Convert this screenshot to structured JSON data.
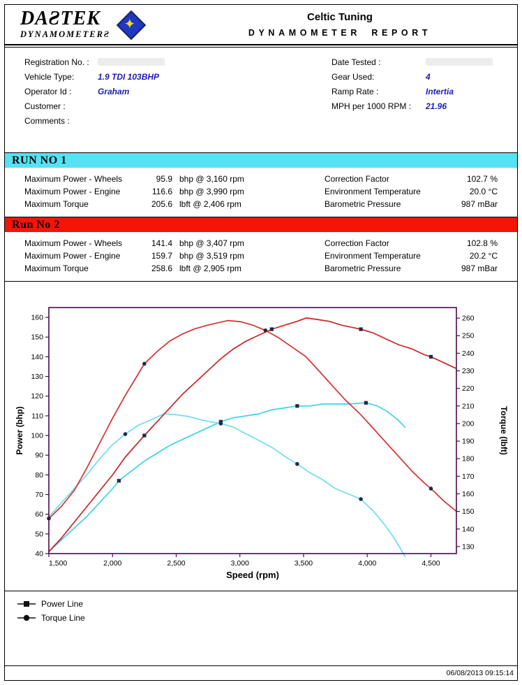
{
  "theme": {
    "value_text_color": "#1c1cb4",
    "run1_accent": "#57e2f4",
    "run2_accent": "#f41408",
    "chart_axis_color": "#4a0a4a"
  },
  "header": {
    "logo_line1": "DAƧTEK",
    "logo_line2": "DYNAMOMETERƧ",
    "logo_icon": "dastek-diamond-logo",
    "company": "Celtic Tuning",
    "report_title": "DYNAMOMETER REPORT"
  },
  "info": {
    "left": [
      {
        "label": "Registration No. :",
        "value": ""
      },
      {
        "label": "Vehicle Type:",
        "value": "1.9 TDI 103BHP"
      },
      {
        "label": "Operator Id :",
        "value": "Graham"
      },
      {
        "label": "Customer :",
        "value": ""
      },
      {
        "label": "Comments :",
        "value": ""
      }
    ],
    "right": [
      {
        "label": "Date Tested :",
        "value": ""
      },
      {
        "label": "Gear Used:",
        "value": "4"
      },
      {
        "label": "Ramp Rate :",
        "value": "Intertia"
      },
      {
        "label": "MPH per 1000 RPM :",
        "value": "21.96"
      }
    ]
  },
  "runs": [
    {
      "title": "RUN NO 1",
      "accent": "#57e2f4",
      "stats": [
        {
          "label": "Maximum Power - Wheels",
          "value": "95.9",
          "unit": "bhp @ 3,160 rpm"
        },
        {
          "label": "Maximum Power - Engine",
          "value": "116.6",
          "unit": "bhp @ 3,990 rpm"
        },
        {
          "label": "Maximum Torque",
          "value": "205.6",
          "unit": "lbft @ 2,406 rpm"
        }
      ],
      "conditions": [
        {
          "label": "Correction Factor",
          "value": "102.7 %"
        },
        {
          "label": "Environment Temperature",
          "value": "20.0 °C"
        },
        {
          "label": "Barometric Pressure",
          "value": "987 mBar"
        }
      ]
    },
    {
      "title": "Run No 2",
      "accent": "#f41408",
      "stats": [
        {
          "label": "Maximum Power - Wheels",
          "value": "141.4",
          "unit": "bhp @ 3,407 rpm"
        },
        {
          "label": "Maximum Power - Engine",
          "value": "159.7",
          "unit": "bhp @ 3,519 rpm"
        },
        {
          "label": "Maximum Torque",
          "value": "258.6",
          "unit": "lbft @ 2,905 rpm"
        }
      ],
      "conditions": [
        {
          "label": "Correction Factor",
          "value": "102.8 %"
        },
        {
          "label": "Environment Temperature",
          "value": "20.2 °C"
        },
        {
          "label": "Barometric Pressure",
          "value": "987 mBar"
        }
      ]
    }
  ],
  "chart_data": {
    "type": "line",
    "xlabel": "Speed (rpm)",
    "ylabel_left": "Power (bhp)",
    "ylabel_right": "Torque (lbft)",
    "x_range": [
      1500,
      4700
    ],
    "y_left_range": [
      40,
      160
    ],
    "y_right_range": [
      130,
      260
    ],
    "x_ticks": [
      1500,
      2000,
      2500,
      3000,
      3500,
      4000,
      4500
    ],
    "x_tick_labels": [
      "1,500",
      "2,000",
      "2,500",
      "3,000",
      "3,500",
      "4,000",
      "4,500"
    ],
    "y_left_ticks": [
      40,
      50,
      60,
      70,
      80,
      90,
      100,
      110,
      120,
      130,
      140,
      150,
      160
    ],
    "y_right_ticks": [
      130,
      140,
      150,
      160,
      170,
      180,
      190,
      200,
      210,
      220,
      230,
      240,
      250,
      260
    ],
    "marker_color": "#1c2b4a",
    "series": [
      {
        "name": "Run 1 Power",
        "axis": "left",
        "units": "bhp",
        "color": "#3fd2e9",
        "marker": "square",
        "marker_at": [
          2050,
          2850,
          3450,
          3990
        ],
        "points": [
          [
            1500,
            41
          ],
          [
            1600,
            47
          ],
          [
            1700,
            53
          ],
          [
            1800,
            59
          ],
          [
            1900,
            66
          ],
          [
            2000,
            73
          ],
          [
            2050,
            77
          ],
          [
            2150,
            82
          ],
          [
            2250,
            87
          ],
          [
            2350,
            91
          ],
          [
            2450,
            95
          ],
          [
            2550,
            98
          ],
          [
            2650,
            101
          ],
          [
            2750,
            104
          ],
          [
            2850,
            107
          ],
          [
            2950,
            109
          ],
          [
            3050,
            110
          ],
          [
            3150,
            111
          ],
          [
            3250,
            113
          ],
          [
            3350,
            114
          ],
          [
            3450,
            115
          ],
          [
            3550,
            115
          ],
          [
            3650,
            116
          ],
          [
            3750,
            116
          ],
          [
            3850,
            116
          ],
          [
            3990,
            116.6
          ],
          [
            4080,
            115
          ],
          [
            4160,
            112
          ],
          [
            4240,
            108
          ],
          [
            4300,
            104
          ]
        ]
      },
      {
        "name": "Run 1 Torque",
        "axis": "right",
        "units": "lbft",
        "color": "#6fdcee",
        "marker": "circle",
        "marker_at": [
          2100,
          2850,
          3450,
          3950
        ],
        "points": [
          [
            1500,
            147
          ],
          [
            1600,
            155
          ],
          [
            1700,
            163
          ],
          [
            1800,
            171
          ],
          [
            1900,
            180
          ],
          [
            2000,
            188
          ],
          [
            2100,
            194
          ],
          [
            2200,
            199
          ],
          [
            2300,
            202
          ],
          [
            2406,
            205.6
          ],
          [
            2500,
            205
          ],
          [
            2600,
            204
          ],
          [
            2700,
            202
          ],
          [
            2850,
            200
          ],
          [
            2950,
            198
          ],
          [
            3050,
            194
          ],
          [
            3160,
            190
          ],
          [
            3260,
            186
          ],
          [
            3360,
            181
          ],
          [
            3450,
            177
          ],
          [
            3550,
            172
          ],
          [
            3650,
            168
          ],
          [
            3750,
            163
          ],
          [
            3850,
            160
          ],
          [
            3950,
            157
          ],
          [
            4050,
            150
          ],
          [
            4130,
            143
          ],
          [
            4200,
            136
          ],
          [
            4260,
            129
          ],
          [
            4300,
            124
          ]
        ]
      },
      {
        "name": "Run 2 Power",
        "axis": "left",
        "units": "bhp",
        "color": "#c82424",
        "marker": "square",
        "marker_at": [
          2250,
          3250,
          3950,
          4500
        ],
        "points": [
          [
            1500,
            41
          ],
          [
            1600,
            48
          ],
          [
            1700,
            56
          ],
          [
            1800,
            64
          ],
          [
            1900,
            72
          ],
          [
            2000,
            80
          ],
          [
            2100,
            89
          ],
          [
            2250,
            100
          ],
          [
            2350,
            107
          ],
          [
            2450,
            114
          ],
          [
            2550,
            121
          ],
          [
            2650,
            127
          ],
          [
            2750,
            133
          ],
          [
            2850,
            139
          ],
          [
            2950,
            144
          ],
          [
            3050,
            148
          ],
          [
            3150,
            151
          ],
          [
            3250,
            154
          ],
          [
            3350,
            156
          ],
          [
            3450,
            158
          ],
          [
            3519,
            159.7
          ],
          [
            3600,
            159
          ],
          [
            3700,
            158
          ],
          [
            3800,
            156
          ],
          [
            3950,
            154
          ],
          [
            4050,
            152
          ],
          [
            4150,
            149
          ],
          [
            4250,
            146
          ],
          [
            4350,
            144
          ],
          [
            4450,
            141
          ],
          [
            4500,
            140
          ],
          [
            4600,
            137
          ],
          [
            4700,
            134
          ]
        ]
      },
      {
        "name": "Run 2 Torque",
        "axis": "right",
        "units": "lbft",
        "color": "#d83030",
        "marker": "circle",
        "marker_at": [
          1500,
          2250,
          3200,
          4500
        ],
        "points": [
          [
            1500,
            146
          ],
          [
            1600,
            153
          ],
          [
            1700,
            162
          ],
          [
            1800,
            175
          ],
          [
            1900,
            189
          ],
          [
            2000,
            203
          ],
          [
            2100,
            216
          ],
          [
            2200,
            228
          ],
          [
            2250,
            234
          ],
          [
            2350,
            241
          ],
          [
            2450,
            247
          ],
          [
            2550,
            251
          ],
          [
            2650,
            254
          ],
          [
            2750,
            256
          ],
          [
            2905,
            258.6
          ],
          [
            3000,
            258
          ],
          [
            3100,
            256
          ],
          [
            3200,
            253
          ],
          [
            3300,
            249
          ],
          [
            3400,
            244
          ],
          [
            3519,
            238
          ],
          [
            3620,
            230
          ],
          [
            3720,
            222
          ],
          [
            3820,
            214
          ],
          [
            3950,
            205
          ],
          [
            4050,
            197
          ],
          [
            4150,
            189
          ],
          [
            4250,
            181
          ],
          [
            4350,
            173
          ],
          [
            4450,
            166
          ],
          [
            4500,
            163
          ],
          [
            4600,
            156
          ],
          [
            4700,
            150
          ]
        ]
      }
    ]
  },
  "legend": {
    "items": [
      {
        "marker": "square",
        "label": "Power Line"
      },
      {
        "marker": "circle",
        "label": "Torque Line"
      }
    ]
  },
  "footer": {
    "timestamp": "06/08/2013 09:15:14"
  }
}
